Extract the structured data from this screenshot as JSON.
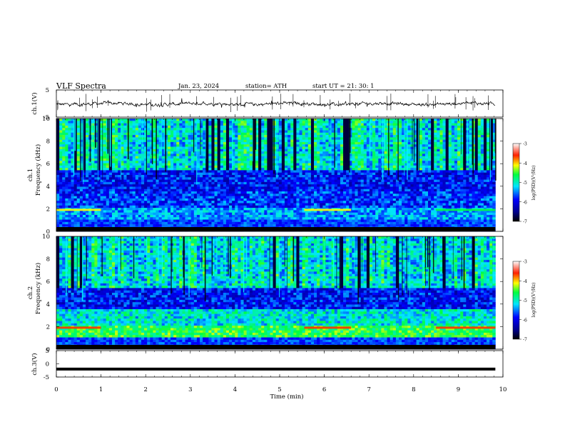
{
  "header": {
    "title": "VLF  Spectra",
    "date": "Jan. 23, 2024",
    "station": "station= ATH",
    "start": "start  UT  =   21: 30: 1"
  },
  "chart_data": [
    {
      "type": "line",
      "name": "ch1-waveform",
      "ylabel": "ch.1(V)",
      "ylim": [
        -5,
        5
      ],
      "y_ticks": [
        "5",
        "-5"
      ],
      "xlim": [
        0,
        10
      ],
      "x_extent": [
        0,
        9.83
      ]
    },
    {
      "type": "heatmap",
      "name": "ch1-spectrogram",
      "ylabel_top": "ch.1",
      "ylabel": "Frequency  (kHz)",
      "ylim": [
        0,
        10
      ],
      "y_ticks": [
        "0",
        "2",
        "4",
        "6",
        "8",
        "10"
      ],
      "xlim": [
        0,
        10
      ],
      "x_extent": [
        0,
        9.83
      ],
      "colorbar": {
        "label": "log(PSD)(V²/Hz)",
        "range": [
          -7,
          -3
        ],
        "ticks": [
          "-3",
          "-4",
          "-5",
          "-6",
          "-7"
        ],
        "colors": [
          "#000080",
          "#0000ff",
          "#00ffff",
          "#00ff00",
          "#ffff00",
          "#ff0000",
          "#ffffff"
        ]
      }
    },
    {
      "type": "heatmap",
      "name": "ch2-spectrogram",
      "ylabel_top": "ch.2",
      "ylabel": "Frequency  (kHz)",
      "ylim": [
        0,
        10
      ],
      "y_ticks": [
        "0",
        "2",
        "4",
        "6",
        "8",
        "10"
      ],
      "xlim": [
        0,
        10
      ],
      "x_extent": [
        0,
        9.83
      ],
      "colorbar": {
        "label": "log(PSD)(V²/Hz)",
        "range": [
          -7,
          -3
        ],
        "ticks": [
          "-3",
          "-4",
          "-5",
          "-6",
          "-7"
        ],
        "colors": [
          "#000080",
          "#0000ff",
          "#00ffff",
          "#00ff00",
          "#ffff00",
          "#ff0000",
          "#ffffff"
        ]
      }
    },
    {
      "type": "line",
      "name": "ch3-waveform",
      "ylabel": "ch.3(V)",
      "ylim": [
        -5,
        5
      ],
      "y_ticks": [
        "5",
        "0",
        "-5"
      ],
      "xlim": [
        0,
        10
      ],
      "x_extent": [
        0,
        9.83
      ],
      "values": [
        -2,
        -2
      ]
    }
  ],
  "x_axis": {
    "label": "Time  (min)",
    "ticks": [
      "0",
      "1",
      "2",
      "3",
      "4",
      "5",
      "6",
      "7",
      "8",
      "9",
      "10"
    ]
  }
}
